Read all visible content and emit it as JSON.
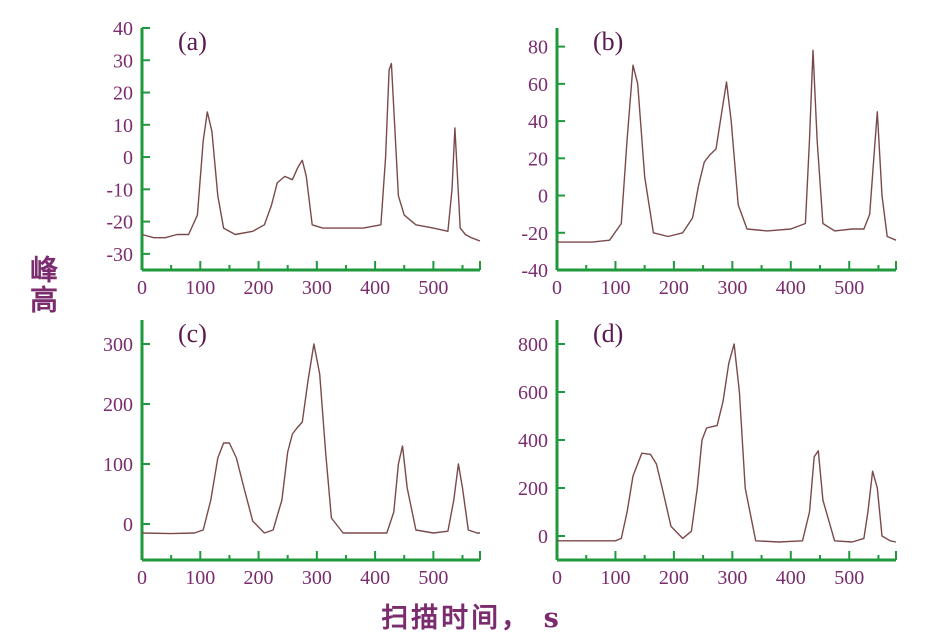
{
  "figure": {
    "ylabel": "峰高",
    "xlabel": "扫描时间， s",
    "axis_color": "#1e9a3c",
    "text_color": "#7b2c6e",
    "line_color": "#7a4a4a"
  },
  "chart_data": [
    {
      "type": "line",
      "panel": "(a)",
      "xlim": [
        0,
        580
      ],
      "ylim": [
        -35,
        40
      ],
      "xticks": [
        0,
        100,
        200,
        300,
        400,
        500
      ],
      "yticks": [
        40,
        30,
        20,
        10,
        0,
        -10,
        -20,
        -30
      ],
      "grid": false,
      "x": [
        0,
        20,
        40,
        60,
        80,
        95,
        105,
        112,
        120,
        130,
        140,
        160,
        190,
        210,
        222,
        232,
        245,
        258,
        268,
        275,
        282,
        292,
        310,
        340,
        380,
        410,
        418,
        424,
        428,
        433,
        440,
        450,
        470,
        500,
        525,
        532,
        537,
        541,
        546,
        555,
        565,
        580
      ],
      "y": [
        -24,
        -25,
        -25,
        -24,
        -24,
        -18,
        5,
        14,
        8,
        -12,
        -22,
        -24,
        -23,
        -21,
        -15,
        -8,
        -6,
        -7,
        -3,
        -1,
        -6,
        -21,
        -22,
        -22,
        -22,
        -21,
        0,
        27,
        29,
        12,
        -12,
        -18,
        -21,
        -22,
        -23,
        -10,
        9,
        -5,
        -22,
        -24,
        -25,
        -26
      ]
    },
    {
      "type": "line",
      "panel": "(b)",
      "xlim": [
        0,
        580
      ],
      "ylim": [
        -40,
        90
      ],
      "xticks": [
        0,
        100,
        200,
        300,
        400,
        500
      ],
      "yticks": [
        80,
        60,
        40,
        20,
        0,
        -20,
        -40
      ],
      "grid": false,
      "x": [
        0,
        30,
        60,
        90,
        110,
        120,
        130,
        138,
        150,
        165,
        190,
        215,
        232,
        242,
        252,
        262,
        272,
        282,
        290,
        298,
        310,
        325,
        360,
        400,
        425,
        432,
        438,
        445,
        455,
        475,
        505,
        525,
        535,
        542,
        548,
        556,
        565,
        580
      ],
      "y": [
        -25,
        -25,
        -25,
        -24,
        -15,
        30,
        70,
        60,
        10,
        -20,
        -22,
        -20,
        -12,
        5,
        18,
        22,
        25,
        45,
        61,
        40,
        -5,
        -18,
        -19,
        -18,
        -15,
        30,
        78,
        30,
        -15,
        -19,
        -18,
        -18,
        -10,
        20,
        45,
        0,
        -22,
        -24
      ]
    },
    {
      "type": "line",
      "panel": "(c)",
      "xlim": [
        0,
        580
      ],
      "ylim": [
        -60,
        340
      ],
      "xticks": [
        0,
        100,
        200,
        300,
        400,
        500
      ],
      "yticks": [
        300,
        200,
        100,
        0
      ],
      "grid": false,
      "x": [
        0,
        50,
        90,
        105,
        118,
        130,
        140,
        150,
        162,
        175,
        190,
        210,
        225,
        240,
        250,
        258,
        266,
        275,
        285,
        295,
        305,
        315,
        325,
        345,
        380,
        420,
        432,
        440,
        447,
        455,
        470,
        500,
        525,
        535,
        543,
        550,
        560,
        575,
        580
      ],
      "y": [
        -15,
        -16,
        -15,
        -10,
        40,
        110,
        135,
        135,
        110,
        60,
        5,
        -15,
        -10,
        40,
        120,
        150,
        160,
        170,
        240,
        300,
        250,
        120,
        10,
        -15,
        -15,
        -15,
        20,
        100,
        130,
        60,
        -10,
        -15,
        -12,
        40,
        100,
        60,
        -10,
        -15,
        -15
      ]
    },
    {
      "type": "line",
      "panel": "(d)",
      "xlim": [
        0,
        580
      ],
      "ylim": [
        -100,
        900
      ],
      "xticks": [
        0,
        100,
        200,
        300,
        400,
        500
      ],
      "yticks": [
        800,
        600,
        400,
        200,
        0
      ],
      "grid": false,
      "x": [
        0,
        60,
        100,
        110,
        120,
        130,
        145,
        160,
        170,
        180,
        195,
        215,
        230,
        240,
        248,
        256,
        264,
        274,
        284,
        294,
        303,
        312,
        322,
        340,
        380,
        420,
        432,
        440,
        447,
        455,
        475,
        505,
        525,
        532,
        540,
        548,
        556,
        570,
        580
      ],
      "y": [
        -20,
        -20,
        -20,
        -10,
        100,
        250,
        345,
        340,
        300,
        200,
        40,
        -10,
        20,
        200,
        400,
        450,
        455,
        460,
        560,
        720,
        800,
        600,
        200,
        -20,
        -25,
        -20,
        100,
        330,
        355,
        150,
        -20,
        -25,
        -10,
        100,
        270,
        200,
        0,
        -20,
        -25
      ]
    }
  ]
}
